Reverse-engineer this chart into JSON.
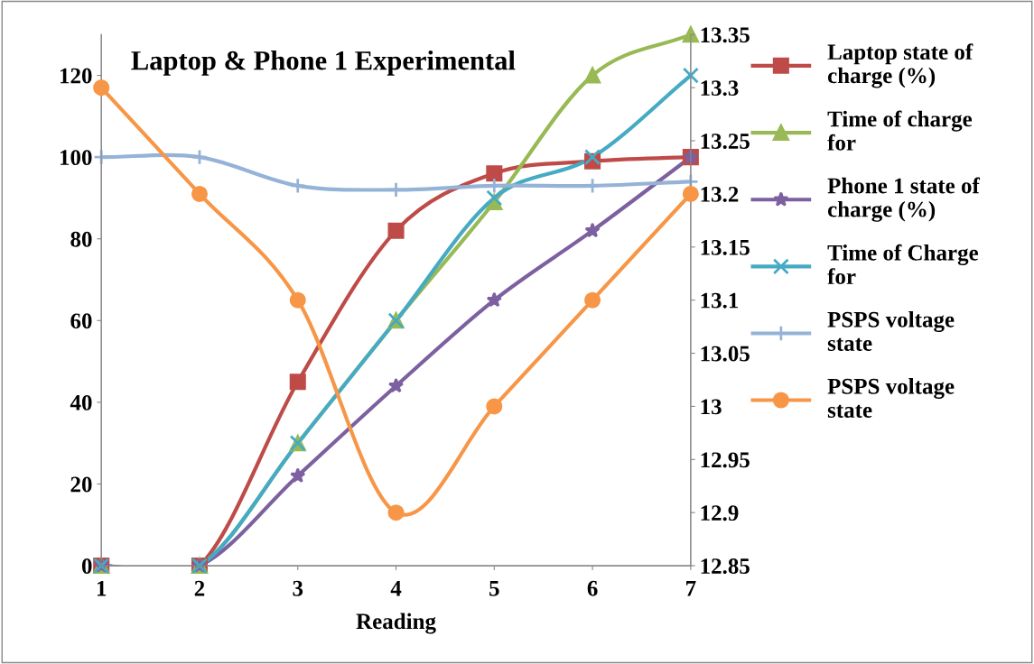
{
  "chart_data": {
    "type": "line",
    "title": "Laptop & Phone 1 Experimental",
    "xlabel": "Reading",
    "x": [
      1,
      2,
      3,
      4,
      5,
      6,
      7
    ],
    "xlim": [
      1,
      7
    ],
    "xticks": [
      1,
      2,
      3,
      4,
      5,
      6,
      7
    ],
    "ylim": [
      0,
      130
    ],
    "yticks": [
      0,
      20,
      40,
      60,
      80,
      100,
      120
    ],
    "y2lim": [
      12.85,
      13.35
    ],
    "y2ticks": [
      {
        "value": 12.85,
        "label": "12.85"
      },
      {
        "value": 12.9,
        "label": "12.9"
      },
      {
        "value": 12.95,
        "label": "12.95"
      },
      {
        "value": 13.0,
        "label": "13"
      },
      {
        "value": 13.05,
        "label": "13.05"
      },
      {
        "value": 13.1,
        "label": "13.1"
      },
      {
        "value": 13.15,
        "label": "13.15"
      },
      {
        "value": 13.2,
        "label": "13.2"
      },
      {
        "value": 13.25,
        "label": "13.25"
      },
      {
        "value": 13.3,
        "label": "13.3"
      },
      {
        "value": 13.35,
        "label": "13.35"
      }
    ],
    "grid": false,
    "legend": "right",
    "series": [
      {
        "name": "Laptop state of\ncharge (%)",
        "color": "#be4b48",
        "marker": "square",
        "values": [
          0,
          0,
          45,
          82,
          96,
          99,
          100
        ]
      },
      {
        "name": "Time of charge\nfor",
        "color": "#98b954",
        "marker": "triangle",
        "values": [
          0,
          0,
          30,
          60,
          89,
          120,
          130
        ]
      },
      {
        "name": "Phone 1 state of\ncharge (%)",
        "color": "#7d60a0",
        "marker": "star",
        "values": [
          0,
          0,
          22,
          44,
          65,
          82,
          100
        ]
      },
      {
        "name": "Time of Charge\nfor",
        "color": "#46aac5",
        "marker": "cross",
        "values": [
          0,
          0,
          30,
          60,
          90,
          100,
          120
        ]
      },
      {
        "name": "PSPS voltage\nstate",
        "color": "#95b3d7",
        "marker": "plus",
        "values": [
          100,
          100,
          93,
          92,
          93,
          93,
          94
        ]
      },
      {
        "name": "PSPS voltage\nstate",
        "color": "#f79646",
        "marker": "circle",
        "axis": "y2",
        "values": [
          13.3,
          13.2,
          13.1,
          12.9,
          13.0,
          13.1,
          13.2
        ]
      }
    ]
  }
}
